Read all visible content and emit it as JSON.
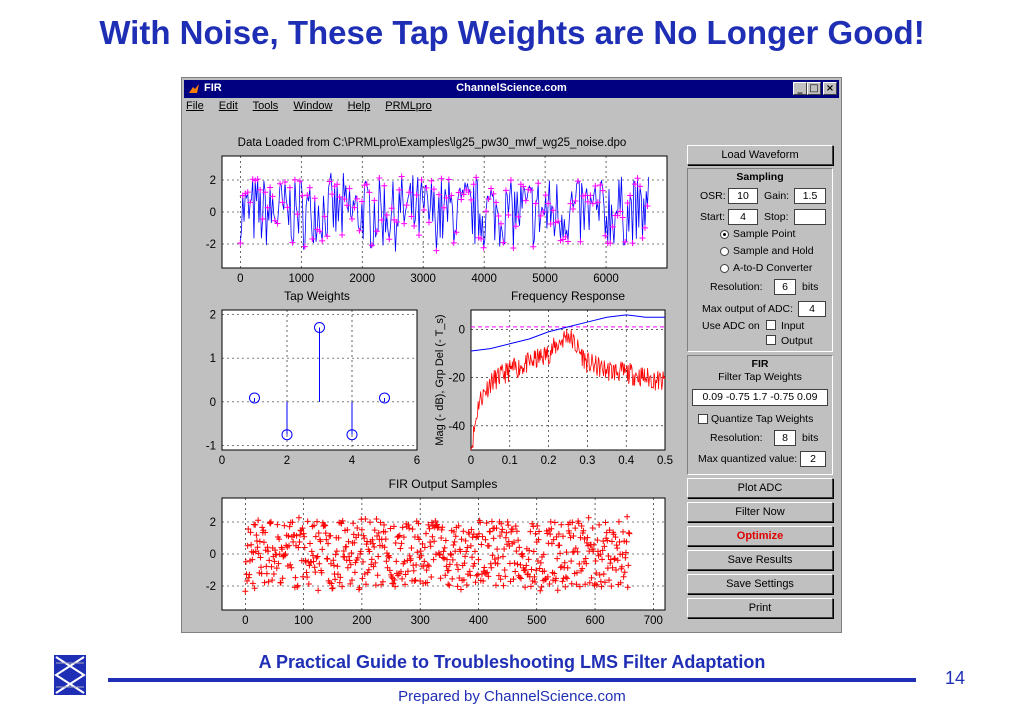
{
  "slide": {
    "title": "With Noise, These Tap Weights are No Longer Good!",
    "footer_title": "A Practical Guide to Troubleshooting LMS Filter Adaptation",
    "footer_sub": "Prepared by ChannelScience.com",
    "page_number": "14",
    "accent": "#1f2fb5"
  },
  "window": {
    "app_name": "FIR",
    "title": "ChannelScience.com",
    "buttons": [
      "_",
      "□",
      "×"
    ],
    "menu": [
      "File",
      "Edit",
      "Tools",
      "Window",
      "Help",
      "PRMLpro"
    ]
  },
  "plots": {
    "top": {
      "title": "Data Loaded from C:\\PRMLpro\\Examples\\lg25_pw30_mwf_wg25_noise.dpo",
      "xticks": [
        "0",
        "1000",
        "2000",
        "3000",
        "4000",
        "5000",
        "6000"
      ],
      "yticks": [
        "2",
        "0",
        "-2"
      ]
    },
    "taps": {
      "title": "Tap Weights",
      "xticks": [
        "0",
        "2",
        "4",
        "6"
      ],
      "yticks": [
        "2",
        "1",
        "0",
        "-1"
      ]
    },
    "freq": {
      "title": "Frequency Response",
      "ylabel": "Mag (- dB), Grp Del (- T_s)",
      "xticks": [
        "0",
        "0.1",
        "0.2",
        "0.3",
        "0.4",
        "0.5"
      ],
      "yticks": [
        "0",
        "-20",
        "-40"
      ]
    },
    "output": {
      "title": "FIR Output Samples",
      "xticks": [
        "0",
        "100",
        "200",
        "300",
        "400",
        "500",
        "600",
        "700"
      ],
      "yticks": [
        "2",
        "0",
        "-2"
      ]
    }
  },
  "chart_data": [
    {
      "type": "scatter",
      "title": "Data Loaded from C:\\PRMLpro\\Examples\\lg25_pw30_mwf_wg25_noise.dpo",
      "xlim": [
        -300,
        7000
      ],
      "ylim": [
        -3.5,
        3.5
      ],
      "series": [
        {
          "style": "noisy waveform with samples",
          "color": "#0000ff",
          "marker_color": "#ff00ff",
          "x_range": [
            0,
            6700
          ],
          "amplitude": 2.2
        }
      ]
    },
    {
      "type": "stem",
      "title": "Tap Weights",
      "x": [
        1,
        2,
        3,
        4,
        5
      ],
      "values": [
        0.09,
        -0.75,
        1.7,
        -0.75,
        0.09
      ],
      "xlim": [
        0,
        6
      ],
      "ylim": [
        -1.1,
        2.1
      ]
    },
    {
      "type": "line",
      "title": "Frequency Response",
      "xlim": [
        0,
        0.5
      ],
      "ylim": [
        -50,
        8
      ],
      "series": [
        {
          "description": "group delay",
          "color": "#0000ff",
          "x": [
            0,
            0.05,
            0.1,
            0.15,
            0.2,
            0.25,
            0.3,
            0.35,
            0.4,
            0.45,
            0.5
          ],
          "values": [
            -9,
            -8,
            -6,
            -4,
            -1,
            1,
            3,
            5,
            6,
            5,
            5
          ]
        },
        {
          "description": "magnitude",
          "color": "#ff0000",
          "x": [
            0,
            0.02,
            0.05,
            0.1,
            0.15,
            0.2,
            0.25,
            0.3,
            0.35,
            0.4,
            0.45,
            0.5
          ],
          "values": [
            -50,
            -30,
            -22,
            -17,
            -14,
            -10,
            -2,
            -14,
            -17,
            -18,
            -20,
            -22
          ]
        },
        {
          "description": "reference",
          "color": "#ff00ff",
          "style": "dashed",
          "x": [
            0,
            0.5
          ],
          "values": [
            1,
            1
          ]
        }
      ]
    },
    {
      "type": "scatter",
      "title": "FIR Output Samples",
      "xlim": [
        -40,
        720
      ],
      "ylim": [
        -3.5,
        3.5
      ],
      "series": [
        {
          "color": "#ff0000",
          "marker": "+",
          "x_range": [
            0,
            660
          ],
          "amplitude": 2.2
        }
      ]
    }
  ],
  "controls": {
    "load_waveform": "Load Waveform",
    "sampling": {
      "header": "Sampling",
      "osr_label": "OSR:",
      "osr_value": "10",
      "gain_label": "Gain:",
      "gain_value": "1.5",
      "start_label": "Start:",
      "start_value": "4",
      "stop_label": "Stop:",
      "stop_value": "",
      "radio_sample_point": "Sample Point",
      "radio_sample_hold": "Sample and Hold",
      "radio_atod": "A-to-D Converter",
      "resolution_label": "Resolution:",
      "resolution_value": "6",
      "bits": "bits",
      "max_adc_label": "Max output of ADC:",
      "max_adc_value": "4",
      "use_adc_label": "Use ADC on",
      "input_label": "Input",
      "output_label": "Output"
    },
    "fir": {
      "header": "FIR",
      "sub": "Filter Tap Weights",
      "weights_value": "0.09 -0.75 1.7 -0.75 0.09",
      "quantize_label": "Quantize Tap Weights",
      "resolution_label": "Resolution:",
      "resolution_value": "8",
      "bits": "bits",
      "max_q_label": "Max quantized value:",
      "max_q_value": "2"
    },
    "plot_adc": "Plot ADC",
    "filter_now": "Filter Now",
    "optimize": "Optimize",
    "save_results": "Save Results",
    "save_settings": "Save Settings",
    "print": "Print"
  }
}
